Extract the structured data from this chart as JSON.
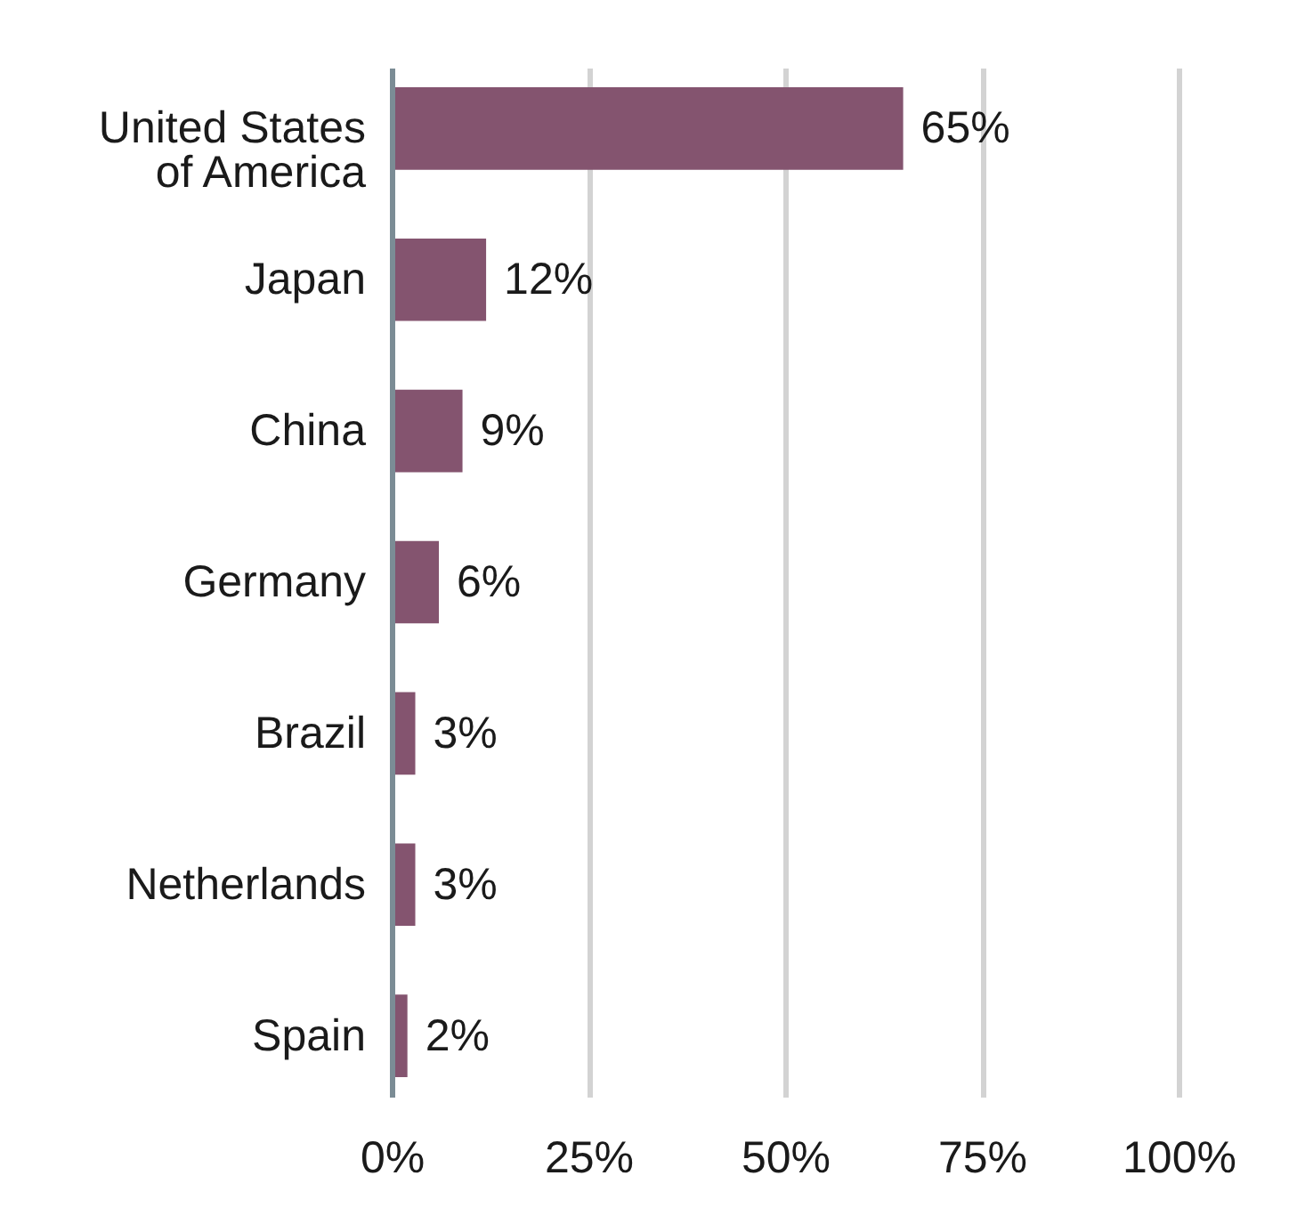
{
  "chart_data": {
    "type": "bar",
    "orientation": "horizontal",
    "categories": [
      "United States of America",
      "Japan",
      "China",
      "Germany",
      "Brazil",
      "Netherlands",
      "Spain"
    ],
    "values": [
      65,
      12,
      9,
      6,
      3,
      3,
      2
    ],
    "value_labels": [
      "65%",
      "12%",
      "9%",
      "6%",
      "3%",
      "3%",
      "2%"
    ],
    "color": "#84546f",
    "xlim": [
      0,
      100
    ],
    "xticks": [
      {
        "value": 0,
        "label": "0%"
      },
      {
        "value": 25,
        "label": "25%"
      },
      {
        "value": 50,
        "label": "50%"
      },
      {
        "value": 75,
        "label": "75%"
      },
      {
        "value": 100,
        "label": "100%"
      }
    ],
    "grid": "x"
  }
}
